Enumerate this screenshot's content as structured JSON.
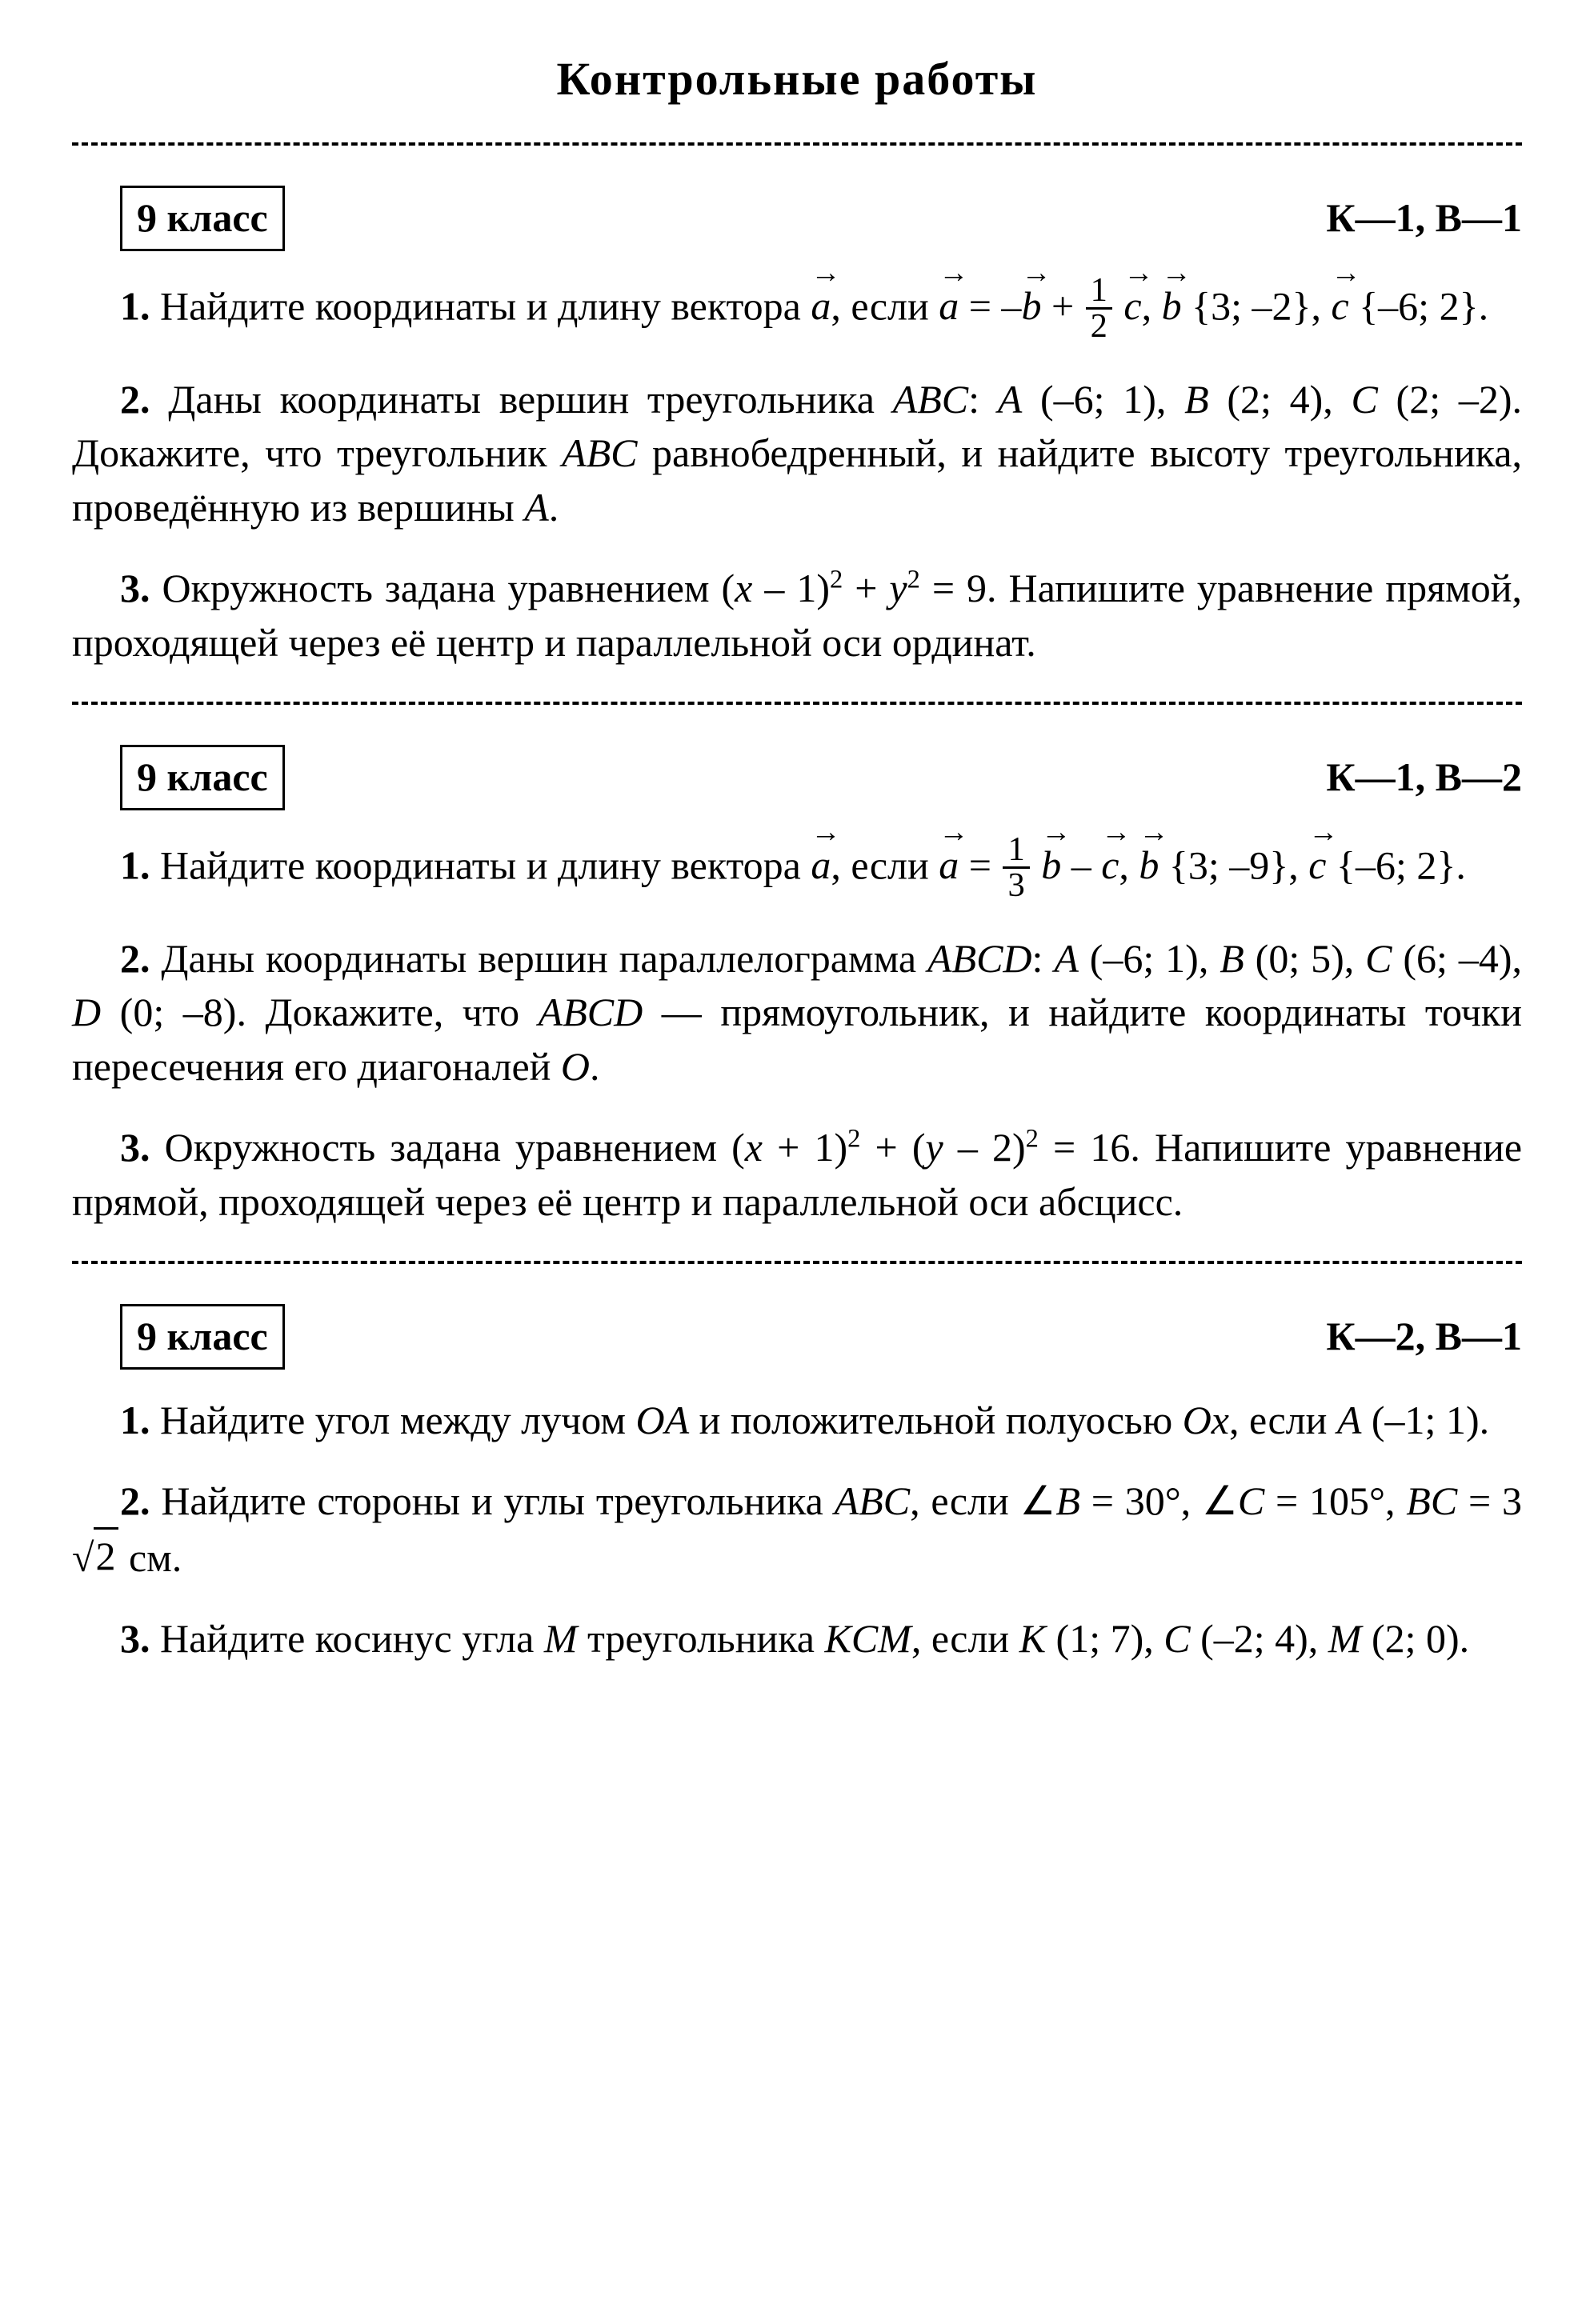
{
  "title": "Контрольные работы",
  "sections": [
    {
      "grade": "9 класс",
      "variant": "К—1, В—1",
      "p1_a": "1.",
      "p1_t1": "Найдите координаты и длину вектора ",
      "p1_t2": ", если ",
      "p1_t3": " = –",
      "p1_t4": " + ",
      "p1_frac_n": "1",
      "p1_frac_d": "2",
      "p1_t5": ", ",
      "p1_t6": " {3; –2}, ",
      "p1_t7": " {–6; 2}.",
      "p2_a": "2.",
      "p2_t1": "Даны координаты вершин треугольника ",
      "p2_abc": "ABC",
      "p2_t2": ": ",
      "p2_A": "A",
      "p2_t3": " (–6; 1), ",
      "p2_B": "B",
      "p2_t4": " (2; 4), ",
      "p2_C": "C",
      "p2_t5": " (2; –2). Докажите, что треугольник ",
      "p2_t6": " равнобедренный, и найдите высоту треугольника, проведённую из вершины ",
      "p2_t7": ".",
      "p3_a": "3.",
      "p3_t1": "Окружность задана уравнением (",
      "p3_x": "x",
      "p3_t2": " – 1)",
      "p3_sup1": "2",
      "p3_t3": " + ",
      "p3_y": "y",
      "p3_sup2": "2",
      "p3_t4": " = 9. Напишите уравнение прямой, проходящей через её центр и параллельной оси ординат."
    },
    {
      "grade": "9 класс",
      "variant": "К—1, В—2",
      "p1_a": "1.",
      "p1_t1": "Найдите координаты и длину вектора ",
      "p1_t2": ", если ",
      "p1_t3": " = ",
      "p1_frac_n": "1",
      "p1_frac_d": "3",
      "p1_t4": " – ",
      "p1_t5": ", ",
      "p1_t6": " {3; –9}, ",
      "p1_t7": " {–6; 2}.",
      "p2_a": "2.",
      "p2_t1": "Даны координаты вершин параллелограмма ",
      "p2_abcd": "ABCD",
      "p2_t2": ": ",
      "p2_A": "A",
      "p2_t3": " (–6; 1),  ",
      "p2_B": "B",
      "p2_t4": " (0; 5),  ",
      "p2_C": "C",
      "p2_t5": " (6; –4),  ",
      "p2_D": "D",
      "p2_t6": " (0; –8). Докажите, что ",
      "p2_t7": " — прямоугольник, и найдите координаты точки пересечения его диагоналей ",
      "p2_O": "O",
      "p2_t8": ".",
      "p3_a": "3.",
      "p3_t1": "Окружность задана уравнением (",
      "p3_x": "x",
      "p3_t2": " + 1)",
      "p3_sup1": "2",
      "p3_t3": " + (",
      "p3_y": "y",
      "p3_t4": " – 2)",
      "p3_sup2": "2",
      "p3_t5": " = 16. Напишите уравнение прямой, проходящей через её центр и параллельной оси абсцисс."
    },
    {
      "grade": "9 класс",
      "variant": "К—2, В—1",
      "p1_a": "1.",
      "p1_t1": "Найдите угол между лучом ",
      "p1_OA": "OA",
      "p1_t2": " и положительной полуосью ",
      "p1_Ox": "Ox",
      "p1_t3": ", если ",
      "p1_A": "A",
      "p1_t4": " (–1; 1).",
      "p2_a": "2.",
      "p2_t1": "Найдите стороны и углы треугольника ",
      "p2_abc": "ABC",
      "p2_t2": ", если ∠",
      "p2_B": "B",
      "p2_t3": " = 30°, ∠",
      "p2_C": "C",
      "p2_t4": " = 105°, ",
      "p2_BC": "BC",
      "p2_t5": " = 3",
      "p2_sqrt": "2",
      "p2_t6": " см.",
      "p3_a": "3.",
      "p3_t1": "Найдите косинус угла ",
      "p3_M": "M",
      "p3_t2": " треугольника ",
      "p3_KCM": "KCM",
      "p3_t3": ", если ",
      "p3_K": "K",
      "p3_t4": " (1; 7), ",
      "p3_C": "C",
      "p3_t5": " (–2; 4), ",
      "p3_M2": "M",
      "p3_t6": " (2; 0)."
    }
  ],
  "vec_a": "a",
  "vec_b": "b",
  "vec_c": "c",
  "arrow": "→"
}
